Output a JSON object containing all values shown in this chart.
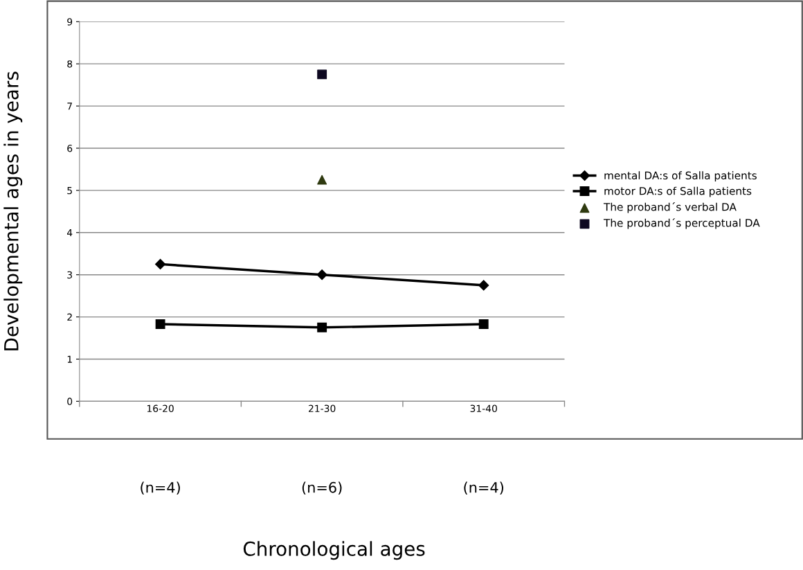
{
  "chart_data": {
    "type": "line",
    "ylabel": "Developmental ages in years",
    "categories": [
      "16-20",
      "21-30",
      "31-40"
    ],
    "series": [
      {
        "name": "mental DA:s of Salla patients",
        "color": "#000000",
        "marker": "diamond",
        "values": [
          3.25,
          3.0,
          2.75
        ]
      },
      {
        "name": "motor DA:s of Salla patients",
        "color": "#000000",
        "marker": "square",
        "values": [
          1.83,
          1.75,
          1.83
        ]
      },
      {
        "name": "The proband´s verbal DA",
        "type": "scatter",
        "color": "#2f3a10",
        "marker": "triangle",
        "values": [
          null,
          5.25,
          null
        ]
      },
      {
        "name": "The proband´s perceptual DA",
        "type": "scatter",
        "color": "#0d0820",
        "marker": "square",
        "values": [
          null,
          7.75,
          null
        ]
      }
    ],
    "annotations": [
      "(n=4)",
      "(n=6)",
      "(n=4)",
      "Chronological ages"
    ],
    "ylim": [
      0,
      9
    ],
    "yticks": [
      0,
      1,
      2,
      3,
      4,
      5,
      6,
      7,
      8,
      9
    ],
    "grid": "y",
    "legend": "right"
  }
}
